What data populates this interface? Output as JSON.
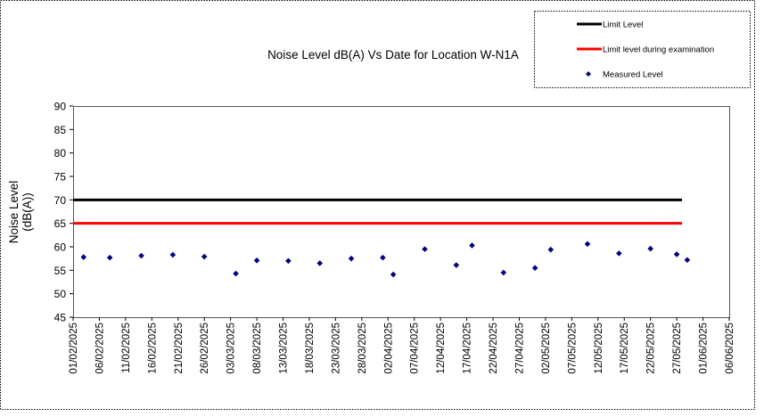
{
  "chart_data": {
    "type": "scatter",
    "title": "Noise Level dB(A) Vs Date for Location W-N1A",
    "ylabel": "Noise Level (dB(A))",
    "ylabel_lines": [
      "Noise Level",
      "(dB(A))"
    ],
    "xlabel": "",
    "ylim": [
      45,
      90
    ],
    "y_ticks": [
      45,
      50,
      55,
      60,
      65,
      70,
      75,
      80,
      85,
      90
    ],
    "xlim": [
      "2025-02-01",
      "2025-06-06"
    ],
    "x_ticks": [
      "01/02/2025",
      "06/02/2025",
      "11/02/2025",
      "16/02/2025",
      "21/02/2025",
      "26/02/2025",
      "03/03/2025",
      "08/03/2025",
      "13/03/2025",
      "18/03/2025",
      "23/03/2025",
      "28/03/2025",
      "02/04/2025",
      "07/04/2025",
      "12/04/2025",
      "17/04/2025",
      "22/04/2025",
      "27/04/2025",
      "02/05/2025",
      "07/05/2025",
      "12/05/2025",
      "17/05/2025",
      "22/05/2025",
      "27/05/2025",
      "01/06/2025",
      "06/06/2025"
    ],
    "grid": false,
    "legend_position": "top-right",
    "series": [
      {
        "name": "Limit Level",
        "kind": "line",
        "color": "#000000",
        "x": [
          "2025-02-01",
          "2025-05-28"
        ],
        "y": [
          70,
          70
        ]
      },
      {
        "name": "Limit level during examination",
        "kind": "line",
        "color": "#ff0000",
        "x": [
          "2025-02-01",
          "2025-05-28"
        ],
        "y": [
          65,
          65
        ]
      },
      {
        "name": "Measured Level",
        "kind": "marker",
        "color": "#000080",
        "x": [
          "2025-02-03",
          "2025-02-08",
          "2025-02-14",
          "2025-02-20",
          "2025-02-26",
          "2025-03-04",
          "2025-03-08",
          "2025-03-14",
          "2025-03-20",
          "2025-03-26",
          "2025-04-01",
          "2025-04-03",
          "2025-04-09",
          "2025-04-15",
          "2025-04-18",
          "2025-04-24",
          "2025-04-30",
          "2025-05-03",
          "2025-05-10",
          "2025-05-16",
          "2025-05-22",
          "2025-05-27",
          "2025-05-29"
        ],
        "y": [
          57.8,
          57.7,
          58.1,
          58.3,
          57.9,
          54.3,
          57.1,
          57.0,
          56.5,
          57.5,
          57.7,
          54.1,
          59.5,
          56.1,
          60.3,
          54.5,
          55.5,
          59.4,
          60.6,
          58.6,
          59.6,
          58.4,
          57.2
        ]
      }
    ]
  }
}
